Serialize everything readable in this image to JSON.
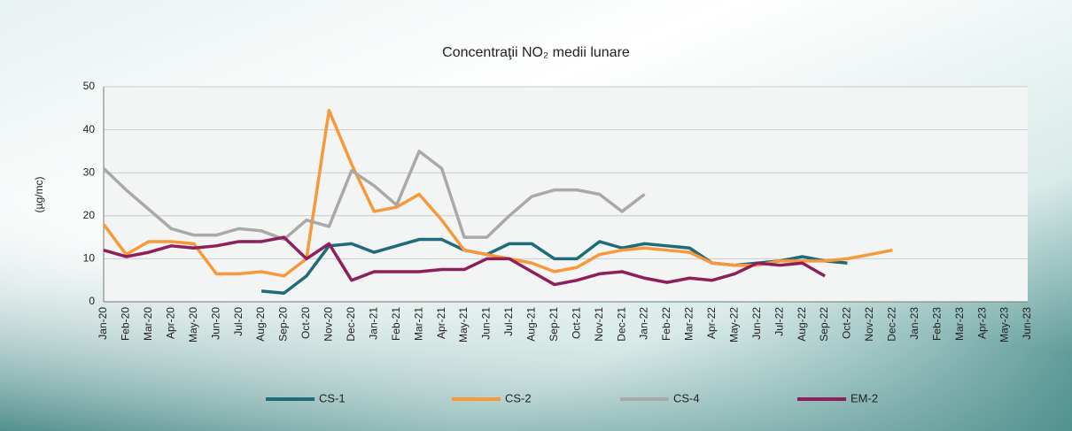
{
  "chart_data": {
    "type": "line",
    "title": "Concentraţii NO₂ medii lunare",
    "y_label": "(µg/mc)",
    "categories": [
      "Jan-20",
      "Feb-20",
      "Mar-20",
      "Apr-20",
      "May-20",
      "Jun-20",
      "Jul-20",
      "Aug-20",
      "Sep-20",
      "Oct-20",
      "Nov-20",
      "Dec-20",
      "Jan-21",
      "Feb-21",
      "Mar-21",
      "Apr-21",
      "May-21",
      "Jun-21",
      "Jul-21",
      "Aug-21",
      "Sep-21",
      "Oct-21",
      "Nov-21",
      "Dec-21",
      "Jan-22",
      "Feb-22",
      "Mar-22",
      "Apr-22",
      "May-22",
      "Jun-22",
      "Jul-22",
      "Aug-22",
      "Sep-22",
      "Oct-22",
      "Nov-22",
      "Dec-22",
      "Jan-23",
      "Feb-23",
      "Mar-23",
      "Apr-23",
      "May-23",
      "Jun-23"
    ],
    "series": [
      {
        "name": "CS-1",
        "color": "#1e6b7b",
        "values": [
          null,
          null,
          null,
          null,
          null,
          null,
          null,
          2.5,
          2,
          6,
          13,
          13.5,
          11.5,
          13,
          14.5,
          14.5,
          12,
          11,
          13.5,
          13.5,
          10,
          10,
          14,
          12.5,
          13.5,
          13,
          12.5,
          9,
          8.5,
          9,
          9.5,
          10.5,
          9.5,
          9,
          null,
          null,
          null,
          null,
          null,
          null,
          null,
          null
        ]
      },
      {
        "name": "CS-2",
        "color": "#f7993a",
        "values": [
          18,
          11,
          14,
          14,
          13.5,
          6.5,
          6.5,
          7,
          6,
          10,
          44.5,
          32,
          21,
          22,
          25,
          19,
          12,
          11,
          10,
          9,
          7,
          8,
          11,
          12,
          12.5,
          12,
          11.5,
          9,
          8.5,
          8.5,
          9.5,
          9.5,
          9.5,
          10,
          11,
          12,
          null,
          null,
          null,
          null,
          null,
          null
        ]
      },
      {
        "name": "CS-4",
        "color": "#a9a9a9",
        "values": [
          31,
          26,
          21.5,
          17,
          15.5,
          15.5,
          17,
          16.5,
          14.5,
          19,
          17.5,
          30.5,
          27,
          22.5,
          35,
          31,
          15,
          15,
          20,
          24.5,
          26,
          26,
          25,
          21,
          25,
          null,
          null,
          null,
          null,
          null,
          null,
          null,
          null,
          null,
          null,
          null,
          null,
          null,
          null,
          null,
          null,
          null
        ]
      },
      {
        "name": "EM-2",
        "color": "#8e1f5a",
        "values": [
          12,
          10.5,
          11.5,
          13,
          12.5,
          13,
          14,
          14,
          15,
          10,
          13.5,
          5,
          7,
          7,
          7,
          7.5,
          7.5,
          10,
          10,
          7,
          4,
          5,
          6.5,
          7,
          5.5,
          4.5,
          5.5,
          5,
          6.5,
          9,
          8.5,
          9,
          6,
          null,
          null,
          null,
          null,
          null,
          null,
          null,
          null,
          null
        ]
      }
    ],
    "ylim": [
      0,
      50
    ],
    "yticks": [
      0,
      10,
      20,
      30,
      40,
      50
    ],
    "grid": true
  }
}
